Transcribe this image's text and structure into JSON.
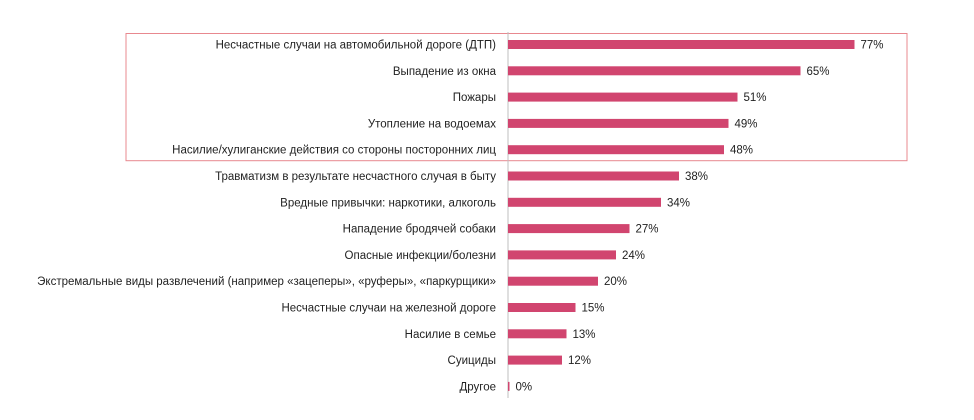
{
  "chart_data": {
    "type": "bar",
    "orientation": "horizontal",
    "categories": [
      "Несчастные случаи на автомобильной дороге (ДТП)",
      "Выпадение из окна",
      "Пожары",
      "Утопление на водоемах",
      "Насилие/хулиганские действия со стороны посторонних лиц",
      "Травматизм в результате несчастного случая в быту",
      "Вредные привычки: наркотики, алкоголь",
      "Нападение бродячей собаки",
      "Опасные инфекции/болезни",
      "Экстремальные виды развлечений (например «зацеперы», «руферы», «паркурщики»",
      "Несчастные случаи на железной дороге",
      "Насилие в семье",
      "Суициды",
      "Другое"
    ],
    "values": [
      77,
      65,
      51,
      49,
      48,
      38,
      34,
      27,
      24,
      20,
      15,
      13,
      12,
      0
    ],
    "value_labels": [
      "77%",
      "65%",
      "51%",
      "49%",
      "48%",
      "38%",
      "34%",
      "27%",
      "24%",
      "20%",
      "15%",
      "13%",
      "12%",
      "0%"
    ],
    "unit": "%",
    "xlim": [
      0,
      100
    ],
    "grid": false,
    "legend": "none",
    "highlight": {
      "from_index": 0,
      "to_index": 4,
      "border_color": "#e8888f"
    },
    "bar_color": "#d1456f",
    "axis_color": "#bfbfbf"
  }
}
